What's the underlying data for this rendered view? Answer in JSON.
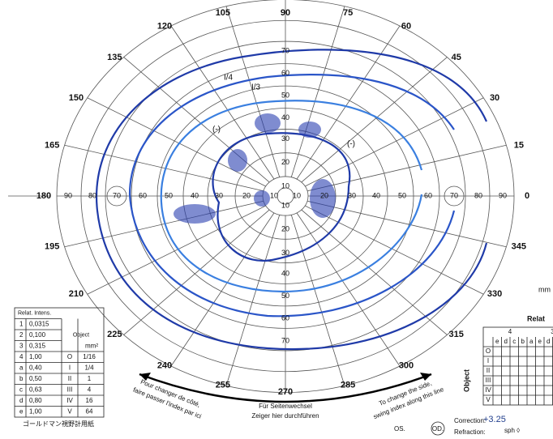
{
  "meridians": [
    "0",
    "15",
    "30",
    "45",
    "60",
    "75",
    "90",
    "105",
    "120",
    "135",
    "150",
    "165",
    "180",
    "195",
    "210",
    "225",
    "240",
    "255",
    "270",
    "285",
    "300",
    "315",
    "330",
    "345"
  ],
  "eccentricities": [
    "10",
    "20",
    "30",
    "40",
    "50",
    "60",
    "70",
    "80",
    "90"
  ],
  "intensity_table": {
    "header": [
      "Relat. Intens.",
      "Object",
      "mm²"
    ],
    "rows": [
      [
        "1",
        "0,0315",
        "",
        ""
      ],
      [
        "2",
        "0,100",
        "",
        ""
      ],
      [
        "3",
        "0,315",
        "",
        ""
      ],
      [
        "4",
        "1,00",
        "O",
        "1/16"
      ],
      [
        "a",
        "0,40",
        "I",
        "1/4"
      ],
      [
        "b",
        "0,50",
        "II",
        "1"
      ],
      [
        "c",
        "0,63",
        "III",
        "4"
      ],
      [
        "d",
        "0,80",
        "IV",
        "16"
      ],
      [
        "e",
        "1,00",
        "V",
        "64"
      ]
    ]
  },
  "maker": "ゴールドマン視野計用紙",
  "side_change": {
    "fr": [
      "Pour changer de côté,",
      "faire passer l'index par ici"
    ],
    "de": [
      "Für Seitenwechsel",
      "Zeiger hier durchführen"
    ],
    "en": [
      "To change the side,",
      "swing index along this line"
    ]
  },
  "eyes": [
    "OS.",
    "OD."
  ],
  "right_panel": {
    "unit": "mm",
    "relat": "Relat",
    "object": "Object",
    "groups": [
      "4",
      "3"
    ],
    "columns": [
      "e",
      "d",
      "c",
      "b",
      "a",
      "e",
      "d",
      "c",
      "b"
    ],
    "rows": [
      "O",
      "I",
      "II",
      "III",
      "IV",
      "V"
    ],
    "correction": "Correction:",
    "correction_value": "+3.25",
    "sph": "sph ◊",
    "refraction": "Refraction:"
  },
  "notes": [
    "I/4",
    "I/3",
    "(-)"
  ]
}
